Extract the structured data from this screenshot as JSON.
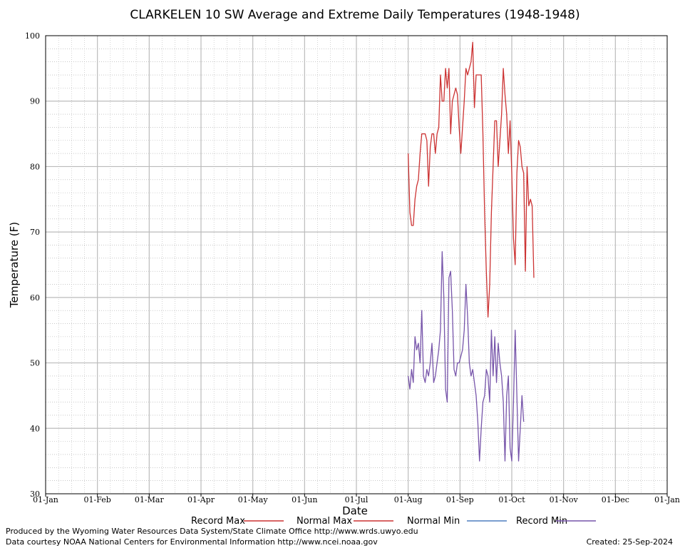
{
  "chart_data": {
    "type": "line",
    "title": "CLARKELEN 10 SW Average and Extreme Daily Temperatures (1948-1948)",
    "xlabel": "Date",
    "ylabel": "Temperature (F)",
    "ylim": [
      30,
      100
    ],
    "yticks": [
      30,
      40,
      50,
      60,
      70,
      80,
      90,
      100
    ],
    "xticks": [
      "01-Jan",
      "01-Feb",
      "01-Mar",
      "01-Apr",
      "01-May",
      "01-Jun",
      "01-Jul",
      "01-Aug",
      "01-Sep",
      "01-Oct",
      "01-Nov",
      "01-Dec",
      "01-Jan"
    ],
    "grid": true,
    "legend_position": "bottom",
    "x_start_label": "01-Aug",
    "series": [
      {
        "name": "Record Max",
        "color": "#cc3333",
        "values": [
          82,
          73,
          71,
          71,
          75,
          77,
          78,
          82,
          85,
          85,
          85,
          84,
          77,
          83,
          85,
          85,
          82,
          85,
          86,
          94,
          90,
          90,
          95,
          92,
          95,
          85,
          90,
          91,
          92,
          91,
          86,
          82,
          86,
          90,
          95,
          94,
          95,
          96,
          99,
          89,
          94,
          94,
          94,
          94,
          85,
          73,
          64,
          57,
          62,
          73,
          80,
          87,
          87,
          80,
          84,
          88,
          95,
          91,
          88,
          82,
          87,
          79,
          69,
          65,
          79,
          84,
          83,
          80,
          79,
          64,
          80,
          74,
          75,
          74,
          63
        ]
      },
      {
        "name": "Normal Max",
        "color": "#cc3333",
        "values": []
      },
      {
        "name": "Normal Min",
        "color": "#4f7fbf",
        "values": []
      },
      {
        "name": "Record Min",
        "color": "#7755aa",
        "values": [
          48,
          46,
          49,
          47,
          54,
          52,
          53,
          50,
          58,
          48,
          47,
          49,
          48,
          50,
          53,
          47,
          48,
          50,
          52,
          55,
          67,
          60,
          46,
          44,
          63,
          64,
          58,
          49,
          48,
          50,
          50,
          51,
          52,
          55,
          62,
          57,
          50,
          48,
          49,
          47,
          45,
          41,
          35,
          40,
          44,
          45,
          49,
          48,
          44,
          55,
          48,
          54,
          47,
          53,
          50,
          48,
          44,
          35,
          45,
          48,
          37,
          35,
          44,
          55,
          45,
          35,
          40,
          45,
          41
        ]
      }
    ]
  },
  "footer": {
    "left_line1": "Produced by the Wyoming Water Resources Data System/State Climate Office http://www.wrds.uwyo.edu",
    "left_line2": "Data courtesy NOAA National Centers for Environmental Information http://www.ncei.noaa.gov",
    "created": "Created:  25-Sep-2024"
  }
}
